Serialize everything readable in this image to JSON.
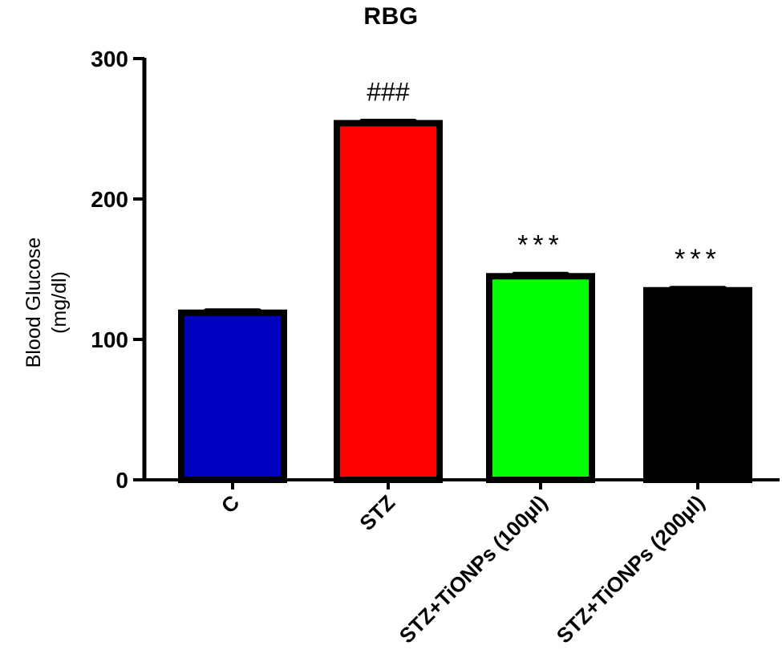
{
  "chart_data": {
    "type": "bar",
    "title": "RBG",
    "xlabel": "",
    "ylabel": "Blood Glucose (mg/dl)",
    "ylabel_lines": [
      "Blood Glucose",
      "(mg/dl)"
    ],
    "ylim": [
      0,
      300
    ],
    "yticks": [
      0,
      100,
      200,
      300
    ],
    "categories": [
      "C",
      "STZ",
      "STZ+TiONPs (100µl)",
      "STZ+TiONPs (200µl)"
    ],
    "values": [
      119,
      254,
      145,
      135
    ],
    "errors": [
      2,
      2,
      2,
      2
    ],
    "colors": [
      "#0000C0",
      "#FF0000",
      "#00FF00",
      "#000000"
    ],
    "annotations": [
      "",
      "###",
      "***",
      "***"
    ],
    "grid": false,
    "legend": null
  }
}
